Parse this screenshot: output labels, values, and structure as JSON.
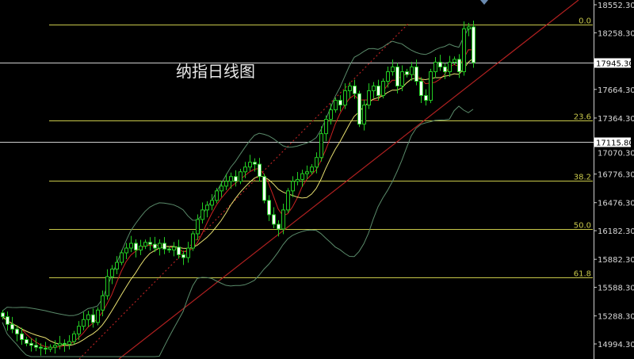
{
  "chart_data": {
    "type": "candlestick",
    "title": "纳指日线图",
    "ylim": [
      14940,
      18600
    ],
    "y_ticks": [
      "18552.30",
      "18258.30",
      "17664.30",
      "17364.30",
      "17070.30",
      "16776.30",
      "16476.30",
      "16182.30",
      "15882.30",
      "15588.30",
      "15288.30",
      "14994.30"
    ],
    "price_markers": [
      {
        "label": "17945.30",
        "value": 17945.3
      },
      {
        "label": "17115.80",
        "value": 17115.8
      }
    ],
    "fibonacci_levels": [
      {
        "label": "0.0",
        "value": 18344
      },
      {
        "label": "23.6",
        "value": 17338
      },
      {
        "label": "38.2",
        "value": 16707
      },
      {
        "label": "50.0",
        "value": 16200
      },
      {
        "label": "61.8",
        "value": 15693
      }
    ],
    "close": [
      15280,
      15200,
      15150,
      15100,
      15040,
      15000,
      14980,
      14960,
      14950,
      14940,
      14960,
      14980,
      15000,
      14990,
      15020,
      15100,
      15180,
      15250,
      15300,
      15220,
      15350,
      15500,
      15700,
      15780,
      15850,
      15950,
      16000,
      16050,
      15980,
      16020,
      16060,
      16040,
      16000,
      16050,
      15990,
      15980,
      16010,
      15930,
      15900,
      16000,
      16150,
      16300,
      16400,
      16450,
      16500,
      16600,
      16650,
      16700,
      16750,
      16700,
      16800,
      16850,
      16900,
      16880,
      16750,
      16500,
      16350,
      16250,
      16200,
      16400,
      16600,
      16700,
      16720,
      16780,
      16800,
      16850,
      16950,
      17200,
      17350,
      17450,
      17550,
      17500,
      17650,
      17700,
      17620,
      17300,
      17500,
      17650,
      17700,
      17600,
      17750,
      17850,
      17900,
      17700,
      17850,
      17820,
      17900,
      17750,
      17600,
      17550,
      17850,
      17950,
      17900,
      17850,
      17950,
      17980,
      17850,
      18300,
      18320,
      17945
    ],
    "colors": {
      "up": "#22cc22",
      "down_fill": "#ffffff",
      "ma_fast": "#cc2222",
      "ma_slow": "#e8e070",
      "bollinger": "#5a8a6a",
      "trendline": "#b02020",
      "fib": "#c8c84a",
      "marker": "#cfcfcf"
    }
  }
}
